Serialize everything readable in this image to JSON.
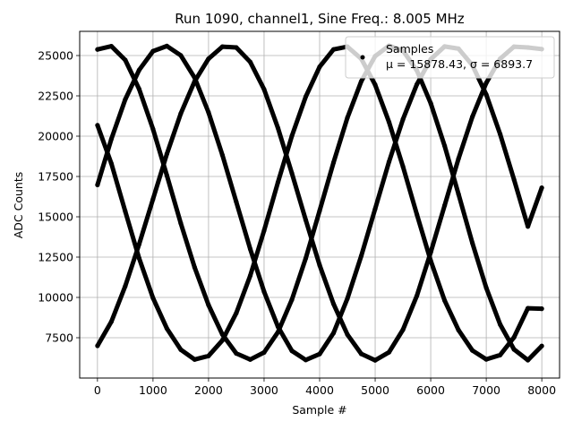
{
  "chart_data": {
    "type": "scatter",
    "title": "Run 1090, channel1, Sine Freq.: 8.005 MHz",
    "xlabel": "Sample #",
    "ylabel": "ADC Counts",
    "xlim": [
      -320,
      8320
    ],
    "ylim": [
      5000,
      26500
    ],
    "xticks": [
      0,
      1000,
      2000,
      3000,
      4000,
      5000,
      6000,
      7000,
      8000
    ],
    "yticks": [
      7500,
      10000,
      12500,
      15000,
      17500,
      20000,
      22500,
      25000
    ],
    "xtick_labels": [
      "0",
      "1000",
      "2000",
      "3000",
      "4000",
      "5000",
      "6000",
      "7000",
      "8000"
    ],
    "ytick_labels": [
      "7500",
      "10000",
      "12500",
      "15000",
      "17500",
      "20000",
      "22500",
      "25000"
    ],
    "grid": true,
    "legend": {
      "placement": "top-right",
      "label": "Samples",
      "stats": "μ = 15878.43, σ = 6893.7"
    },
    "point_color": "#000000",
    "series": [
      {
        "x": [
          0,
          250,
          500,
          750,
          1000,
          1250,
          1500,
          1750,
          2000,
          2250,
          2500,
          2750,
          3000,
          3250,
          3500,
          3750,
          4000,
          4250,
          4500,
          4750,
          5000,
          5250,
          5500,
          5750,
          6000,
          6250,
          6500,
          6750,
          7000,
          7250,
          7500,
          7750,
          8000
        ],
        "y": [
          25380,
          25580,
          24720,
          22920,
          20440,
          17560,
          14600,
          11860,
          9530,
          7700,
          6530,
          6150,
          6590,
          7850,
          9860,
          12430,
          15380,
          18360,
          21140,
          23400,
          24960,
          25610,
          25300,
          24070,
          22040,
          19400,
          16410,
          13380,
          10600,
          8330,
          6780,
          6110,
          6990
        ]
      },
      {
        "x": [
          0,
          250,
          500,
          750,
          1000,
          1250,
          1500,
          1750,
          2000,
          2250,
          2500,
          2750,
          3000,
          3250,
          3500,
          3750,
          4000,
          4250,
          4500,
          4750,
          5000,
          5250,
          5500,
          5750,
          6000,
          6250,
          6500,
          6750,
          7000,
          7250,
          7500,
          7750,
          8000
        ],
        "y": [
          20680,
          18300,
          15340,
          12430,
          9960,
          8070,
          6760,
          6150,
          6370,
          7340,
          9030,
          11350,
          14150,
          17150,
          20010,
          22450,
          24300,
          25380,
          25550,
          24800,
          23190,
          20880,
          18110,
          15150,
          12270,
          9810,
          7980,
          6710,
          6160,
          6430,
          7520,
          9330,
          9300
        ]
      },
      {
        "x": [
          0,
          250,
          500,
          750,
          1000,
          1250,
          1500,
          1750,
          2000,
          2250,
          2500,
          2750,
          3000,
          3250,
          3500,
          3750,
          4000,
          4250,
          4500,
          4750,
          5000,
          5250,
          5500,
          5750,
          6000,
          6250,
          6500,
          6750,
          7000,
          7250,
          7500,
          7750,
          8000
        ],
        "y": [
          16980,
          19830,
          22280,
          24100,
          25270,
          25590,
          25010,
          23620,
          21470,
          18830,
          15920,
          13000,
          10350,
          8180,
          6690,
          6120,
          6490,
          7790,
          9930,
          12570,
          15490,
          18410,
          21050,
          23210,
          24770,
          25560,
          25430,
          24400,
          22580,
          20130,
          17310,
          14400,
          16800
        ]
      },
      {
        "x": [
          0,
          250,
          500,
          750,
          1000,
          1250,
          1500,
          1750,
          2000,
          2250,
          2500,
          2750,
          3000,
          3250,
          3500,
          3750,
          4000,
          4250,
          4500,
          4750,
          5000,
          5250,
          5500,
          5750,
          6000,
          6250,
          6500,
          6750,
          7000,
          7250,
          7500,
          7750,
          8000
        ],
        "y": [
          7000,
          8500,
          10700,
          13300,
          16100,
          18900,
          21400,
          23400,
          24800,
          25550,
          25500,
          24600,
          22900,
          20500,
          17700,
          14800,
          12000,
          9600,
          7700,
          6500,
          6100,
          6600,
          8000,
          10100,
          12800,
          15700,
          18600,
          21200,
          23300,
          24800,
          25550,
          25500,
          25400
        ]
      }
    ]
  }
}
